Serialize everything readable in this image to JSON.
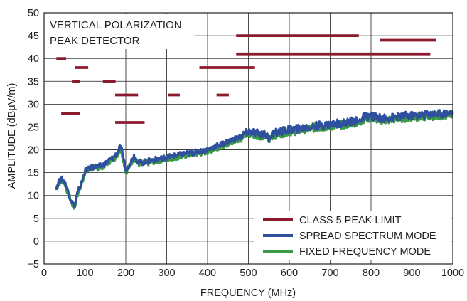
{
  "chart_data": {
    "type": "line",
    "xlabel": "FREQUENCY (MHz)",
    "ylabel": "AMPLITUDE (dBµV/m)",
    "xlim": [
      0,
      1000
    ],
    "ylim": [
      -5,
      50
    ],
    "xticks": [
      0,
      100,
      200,
      300,
      400,
      500,
      600,
      700,
      800,
      900,
      1000
    ],
    "yticks": [
      -5,
      0,
      5,
      10,
      15,
      20,
      25,
      30,
      35,
      40,
      45,
      50
    ],
    "grid": true,
    "legend_position": "bottom-right",
    "annotation": [
      "VERTICAL POLARIZATION",
      "PEAK DETECTOR"
    ],
    "limit_series": {
      "name": "CLASS 5 PEAK LIMIT",
      "color": "#8b1a2e",
      "segments": [
        {
          "x": [
            30,
            54
          ],
          "y": 40
        },
        {
          "x": [
            42,
            88
          ],
          "y": 28
        },
        {
          "x": [
            68,
            88
          ],
          "y": 35
        },
        {
          "x": [
            76,
            108
          ],
          "y": 38
        },
        {
          "x": [
            144,
            175
          ],
          "y": 35
        },
        {
          "x": [
            174,
            230
          ],
          "y": 32
        },
        {
          "x": [
            174,
            246
          ],
          "y": 26
        },
        {
          "x": [
            303,
            332
          ],
          "y": 32
        },
        {
          "x": [
            380,
            516
          ],
          "y": 38
        },
        {
          "x": [
            422,
            452
          ],
          "y": 32
        },
        {
          "x": [
            470,
            770
          ],
          "y": 45
        },
        {
          "x": [
            470,
            945
          ],
          "y": 41
        },
        {
          "x": [
            822,
            960
          ],
          "y": 44
        }
      ]
    },
    "series": [
      {
        "name": "FIXED FREQUENCY MODE",
        "color": "#3a9a45",
        "x": [
          30,
          35,
          40,
          45,
          50,
          55,
          60,
          65,
          70,
          75,
          80,
          85,
          90,
          95,
          100,
          110,
          120,
          130,
          140,
          150,
          160,
          170,
          180,
          185,
          190,
          195,
          200,
          205,
          210,
          220,
          230,
          240,
          260,
          280,
          300,
          320,
          340,
          360,
          380,
          400,
          420,
          440,
          460,
          480,
          500,
          520,
          540,
          550,
          560,
          580,
          600,
          620,
          640,
          660,
          680,
          700,
          720,
          740,
          760,
          770,
          780,
          800,
          820,
          840,
          860,
          880,
          900,
          920,
          940,
          960,
          980,
          1000
        ],
        "y": [
          11.5,
          12.5,
          13,
          13.3,
          12.8,
          11.5,
          10.2,
          9,
          8,
          7.3,
          9.8,
          11,
          12,
          13.5,
          15.2,
          15.5,
          16,
          16,
          16.2,
          16.8,
          17.5,
          18,
          19,
          20,
          19.5,
          17.5,
          15,
          15.8,
          16.5,
          18.3,
          17,
          16.8,
          17.3,
          17.6,
          18,
          18.3,
          18.7,
          19,
          19.2,
          19.6,
          20.4,
          21,
          21.8,
          22.4,
          23.6,
          23.3,
          23,
          22.2,
          23.2,
          23.6,
          24,
          24.2,
          24.5,
          24.8,
          25,
          25.2,
          25.4,
          25.6,
          26,
          25.7,
          26.8,
          27,
          26.6,
          26.5,
          26.8,
          27,
          27.1,
          27.2,
          27.4,
          27.5,
          27.6,
          27.8
        ]
      },
      {
        "name": "SPREAD SPECTRUM MODE",
        "color": "#2f4f9f",
        "x": [
          30,
          35,
          40,
          45,
          50,
          55,
          60,
          65,
          70,
          75,
          80,
          85,
          90,
          95,
          100,
          110,
          120,
          130,
          140,
          150,
          160,
          170,
          180,
          185,
          190,
          195,
          200,
          205,
          210,
          220,
          230,
          240,
          260,
          280,
          300,
          320,
          340,
          360,
          380,
          400,
          420,
          440,
          460,
          480,
          500,
          520,
          540,
          550,
          560,
          580,
          600,
          620,
          640,
          660,
          680,
          700,
          720,
          740,
          760,
          770,
          780,
          800,
          820,
          840,
          860,
          880,
          900,
          920,
          940,
          960,
          980,
          1000
        ],
        "y": [
          11.8,
          12.8,
          13.4,
          13.6,
          13,
          11.8,
          10.5,
          9.3,
          8.2,
          7.6,
          10,
          11.3,
          12.3,
          13.8,
          15.5,
          15.8,
          16.3,
          16.3,
          16.5,
          17,
          17.8,
          18.3,
          19.4,
          20.5,
          20,
          18,
          15.4,
          16.2,
          17,
          18.7,
          17.4,
          17.2,
          17.7,
          18,
          18.4,
          18.7,
          19.1,
          19.3,
          19.6,
          20,
          20.8,
          21.4,
          22.2,
          22.8,
          24,
          23.7,
          23.4,
          22.6,
          23.6,
          24,
          24.4,
          24.6,
          24.9,
          25.2,
          25.4,
          25.6,
          25.8,
          26,
          26.4,
          26.1,
          27.2,
          27.4,
          27,
          26.9,
          27.2,
          27.4,
          27.5,
          27.6,
          27.8,
          27.9,
          28,
          28.2
        ]
      }
    ]
  }
}
